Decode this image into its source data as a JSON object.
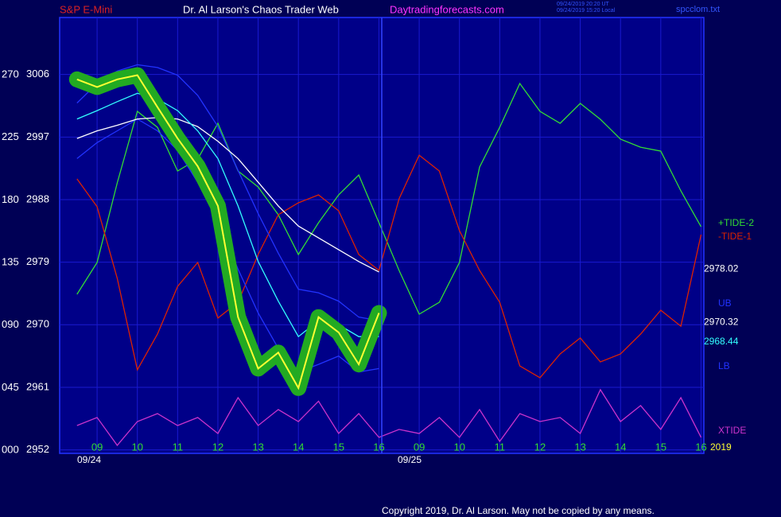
{
  "chart_data": {
    "type": "line",
    "header": {
      "instrument": "S&P E-Mini",
      "site": "Dr. Al Larson's Chaos Trader Web",
      "url": "Daytradingforecasts.com",
      "stamp_utc": "09/24/2019 20:20 UT",
      "stamp_local": "09/24/2019 15:20 Local",
      "file": "spcclom.txt"
    },
    "copyright": "Copyright 2019, Dr. Al Larson. May not be copied by any means.",
    "dates": [
      "09/24",
      "09/25"
    ],
    "x": [
      8.5,
      9,
      9.5,
      10,
      10.5,
      11,
      11.5,
      12,
      12.5,
      13,
      13.5,
      14,
      14.5,
      15,
      15.5,
      16,
      16.5,
      17,
      17.5,
      18,
      18.5,
      19,
      19.5,
      20,
      20.5,
      21,
      21.5,
      22,
      22.5,
      23,
      23.5,
      24
    ],
    "xlim": [
      8.07,
      24.07
    ],
    "xticks": [
      {
        "value": 9,
        "label": "09"
      },
      10,
      11,
      12,
      13,
      14,
      15,
      16,
      {
        "value": 17,
        "label": "09"
      },
      {
        "value": 18,
        "label": "10"
      },
      {
        "value": 19,
        "label": "11"
      },
      {
        "value": 20,
        "label": "12"
      },
      {
        "value": 21,
        "label": "13"
      },
      {
        "value": 22,
        "label": "14"
      },
      {
        "value": 23,
        "label": "15"
      },
      {
        "value": 24,
        "label": "16"
      }
    ],
    "ylim": [
      2951.5,
      3014.2
    ],
    "yticks": [
      2952,
      2961,
      2970,
      2979,
      2988,
      2997,
      3006
    ],
    "y2lim": [
      -2.3,
      311.2
    ],
    "y2ticks": [
      {
        "value": 0,
        "label": "000"
      },
      {
        "value": 45,
        "label": "045"
      },
      {
        "value": 90,
        "label": "090"
      },
      135,
      180,
      225,
      270
    ],
    "grid": true,
    "series": [
      {
        "name": "+TIDE-2",
        "color": "#33dd33",
        "axis": "y2",
        "values": [
          112.1,
          135.0,
          192.2,
          243.7,
          232.2,
          200.8,
          209.4,
          235.1,
          200.8,
          189.3,
          169.3,
          140.7,
          163.6,
          183.6,
          197.9,
          163.6,
          129.3,
          97.8,
          106.4,
          135.0,
          203.6,
          232.2,
          263.7,
          243.7,
          235.1,
          249.4,
          238.0,
          223.7,
          217.9,
          215.1,
          186.5,
          160.7
        ]
      },
      {
        "name": "-TIDE-1",
        "color": "#dd2200",
        "axis": "y2",
        "values": [
          195.1,
          175.1,
          123.6,
          57.8,
          83.5,
          117.8,
          135.0,
          95.0,
          106.4,
          140.7,
          169.3,
          177.9,
          183.6,
          172.2,
          140.7,
          129.3,
          180.8,
          212.2,
          200.8,
          157.9,
          129.3,
          106.4,
          60.6,
          52.1,
          69.2,
          80.7,
          63.5,
          69.2,
          83.5,
          100.7,
          89.2,
          155.0
        ]
      },
      {
        "name": "UB",
        "color": "#2233ff",
        "values": [
          3001.9,
          3004.7,
          3006.5,
          3007.4,
          3007.0,
          3005.9,
          3003.0,
          2998.5,
          2992.2,
          2986.0,
          2980.3,
          2975.1,
          2974.6,
          2973.4,
          2971.1,
          2970.6,
          null,
          null,
          null,
          null,
          null,
          null,
          null,
          null,
          null,
          null,
          null,
          null,
          null,
          null,
          null,
          null
        ]
      },
      {
        "name": "LB",
        "color": "#2233ff",
        "values": [
          2993.9,
          2996.2,
          2997.9,
          2999.6,
          2997.9,
          2995.1,
          2990.5,
          2984.8,
          2978.0,
          2971.7,
          2966.6,
          2963.2,
          2964.3,
          2965.5,
          2963.2,
          2963.7,
          null,
          null,
          null,
          null,
          null,
          null,
          null,
          null,
          null,
          null,
          null,
          null,
          null,
          null,
          null,
          null
        ]
      },
      {
        "name": "XTIDE",
        "color": "#cc33cc",
        "axis": "y2",
        "values": [
          17.7,
          23.5,
          3.5,
          20.6,
          26.3,
          17.7,
          23.5,
          12.0,
          37.8,
          17.7,
          29.2,
          20.6,
          35.2,
          12.0,
          26.3,
          9.2,
          14.9,
          12.0,
          23.5,
          9.2,
          29.2,
          6.3,
          26.3,
          20.6,
          23.5,
          12.0,
          43.5,
          20.6,
          32.1,
          14.9,
          37.8,
          9.2
        ]
      },
      {
        "color": "#ffffff",
        "values": [
          2996.8,
          2997.9,
          2998.7,
          2999.6,
          2999.8,
          2999.6,
          2998.5,
          2996.4,
          2993.9,
          2990.5,
          2987.1,
          2984.2,
          2982.5,
          2980.8,
          2979.1,
          2977.6,
          null,
          null,
          null,
          null,
          null,
          null,
          null,
          null,
          null,
          null,
          null,
          null,
          null,
          null,
          null,
          null
        ]
      },
      {
        "color": "#33ffff",
        "values": [
          2999.6,
          3000.8,
          3002.1,
          3003.3,
          3002.5,
          3000.8,
          2997.9,
          2993.9,
          2987.1,
          2979.1,
          2973.4,
          2968.3,
          2970.6,
          2970.0,
          2968.3,
          2968.3,
          null,
          null,
          null,
          null,
          null,
          null,
          null,
          null,
          null,
          null,
          null,
          null,
          null,
          null,
          null,
          null
        ]
      },
      {
        "color": "#ffff33",
        "glow": "#22aa22",
        "values": [
          3005.3,
          3004.2,
          3005.3,
          3005.9,
          3001.3,
          2996.8,
          2992.8,
          2987.1,
          2971.1,
          2963.7,
          2966.0,
          2960.9,
          2971.1,
          2968.9,
          2964.3,
          2971.7,
          null,
          null,
          null,
          null,
          null,
          null,
          null,
          null,
          null,
          null,
          null,
          null,
          null,
          null,
          null,
          null
        ]
      }
    ],
    "end_labels": [
      2978.02,
      2970.32,
      2968.44
    ],
    "end_label_colors": [
      "#ffffff",
      "#ffffff",
      "#33ffff"
    ],
    "year_label": "2019"
  }
}
